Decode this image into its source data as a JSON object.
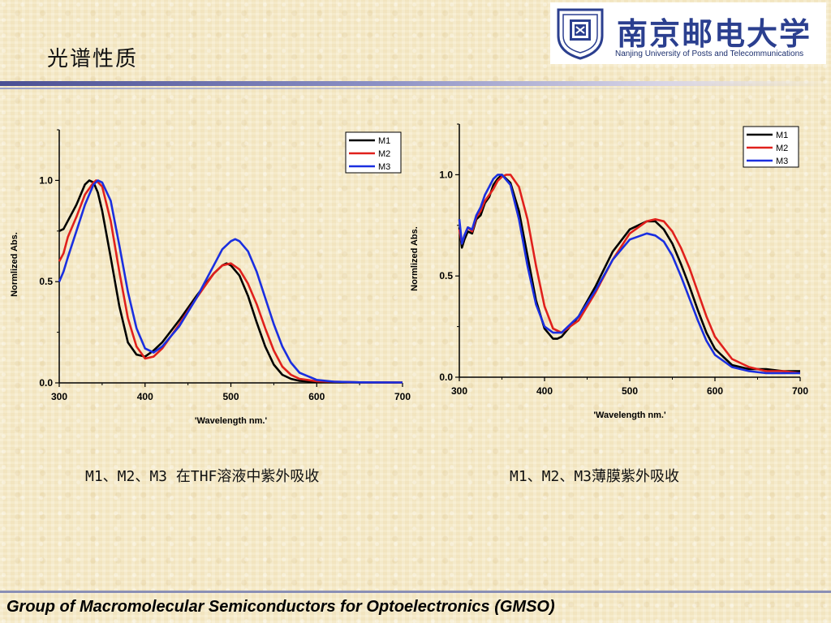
{
  "slide": {
    "title": "光谱性质",
    "footer": "Group of Macromolecular Semiconductors for Optoelectronics (GMSO)"
  },
  "logo": {
    "name_cn": "南京邮电大学",
    "name_en": "Nanjing University of Posts and Telecommunications"
  },
  "captions": {
    "left": "M1、M2、M3 在THF溶液中紫外吸收",
    "right": "M1、M2、M3薄膜紫外吸收"
  },
  "colors": {
    "M1": "#000000",
    "M2": "#e0201c",
    "M3": "#1a2fe0"
  },
  "chart_data": [
    {
      "type": "line",
      "xlabel": "'Wavelength nm.'",
      "ylabel": "Normlized Abs.",
      "xlim": [
        300,
        700
      ],
      "ylim": [
        0,
        1.25
      ],
      "xticks": [
        "300",
        "400",
        "500",
        "600",
        "700"
      ],
      "yticks": [
        {
          "v": 0,
          "label": "0.0"
        },
        {
          "v": 0.5,
          "label": "0.5"
        },
        {
          "v": 1,
          "label": "1.0"
        }
      ],
      "legend_position": "top-right",
      "series": [
        {
          "name": "M1",
          "x": [
            300,
            305,
            310,
            320,
            330,
            335,
            340,
            345,
            350,
            360,
            370,
            380,
            390,
            400,
            410,
            420,
            440,
            460,
            480,
            490,
            495,
            500,
            510,
            520,
            530,
            540,
            550,
            560,
            570,
            580,
            600,
            650,
            700
          ],
          "y": [
            0.75,
            0.76,
            0.8,
            0.88,
            0.98,
            1.0,
            0.99,
            0.94,
            0.85,
            0.62,
            0.38,
            0.2,
            0.14,
            0.13,
            0.16,
            0.2,
            0.31,
            0.43,
            0.54,
            0.58,
            0.59,
            0.58,
            0.53,
            0.43,
            0.3,
            0.18,
            0.09,
            0.04,
            0.02,
            0.01,
            0.005,
            0.003,
            0.002
          ]
        },
        {
          "name": "M2",
          "x": [
            300,
            305,
            310,
            320,
            330,
            340,
            343,
            350,
            360,
            370,
            380,
            390,
            400,
            410,
            420,
            440,
            460,
            480,
            490,
            500,
            510,
            520,
            530,
            540,
            550,
            560,
            570,
            580,
            600,
            650,
            700
          ],
          "y": [
            0.6,
            0.64,
            0.72,
            0.82,
            0.93,
            0.99,
            1.0,
            0.97,
            0.8,
            0.55,
            0.32,
            0.18,
            0.12,
            0.13,
            0.17,
            0.29,
            0.42,
            0.54,
            0.58,
            0.59,
            0.56,
            0.49,
            0.39,
            0.27,
            0.16,
            0.08,
            0.04,
            0.02,
            0.008,
            0.003,
            0.002
          ]
        },
        {
          "name": "M3",
          "x": [
            300,
            305,
            310,
            320,
            330,
            340,
            345,
            350,
            360,
            370,
            380,
            390,
            400,
            410,
            420,
            440,
            460,
            480,
            490,
            500,
            505,
            510,
            520,
            530,
            540,
            550,
            560,
            570,
            580,
            600,
            620,
            650,
            700
          ],
          "y": [
            0.5,
            0.55,
            0.62,
            0.75,
            0.88,
            0.98,
            1.0,
            0.99,
            0.9,
            0.68,
            0.45,
            0.27,
            0.17,
            0.15,
            0.18,
            0.28,
            0.42,
            0.58,
            0.66,
            0.7,
            0.71,
            0.7,
            0.65,
            0.55,
            0.42,
            0.29,
            0.18,
            0.1,
            0.05,
            0.015,
            0.006,
            0.003,
            0.002
          ]
        }
      ]
    },
    {
      "type": "line",
      "xlabel": "'Wavelength nm.'",
      "ylabel": "Normlized Abs.",
      "xlim": [
        300,
        700
      ],
      "ylim": [
        0,
        1.25
      ],
      "xticks": [
        "300",
        "400",
        "500",
        "600",
        "700"
      ],
      "yticks": [
        {
          "v": 0,
          "label": "0.0"
        },
        {
          "v": 0.5,
          "label": "0.5"
        },
        {
          "v": 1,
          "label": "1.0"
        }
      ],
      "legend_position": "top-right",
      "series": [
        {
          "name": "M1",
          "x": [
            300,
            303,
            306,
            310,
            315,
            320,
            325,
            330,
            335,
            340,
            345,
            350,
            360,
            370,
            380,
            390,
            400,
            410,
            415,
            420,
            440,
            460,
            480,
            500,
            520,
            530,
            540,
            550,
            560,
            570,
            580,
            590,
            600,
            620,
            640,
            660,
            680,
            700
          ],
          "y": [
            0.74,
            0.64,
            0.68,
            0.72,
            0.71,
            0.78,
            0.8,
            0.86,
            0.89,
            0.95,
            0.98,
            1.0,
            0.96,
            0.82,
            0.6,
            0.38,
            0.24,
            0.19,
            0.19,
            0.2,
            0.3,
            0.45,
            0.62,
            0.73,
            0.77,
            0.77,
            0.73,
            0.66,
            0.56,
            0.45,
            0.33,
            0.22,
            0.14,
            0.06,
            0.04,
            0.04,
            0.03,
            0.03
          ]
        },
        {
          "name": "M2",
          "x": [
            300,
            303,
            306,
            310,
            315,
            320,
            325,
            330,
            335,
            340,
            345,
            350,
            355,
            360,
            370,
            380,
            390,
            400,
            410,
            420,
            440,
            460,
            480,
            500,
            520,
            530,
            540,
            550,
            560,
            570,
            580,
            590,
            600,
            620,
            640,
            660,
            680,
            700
          ],
          "y": [
            0.73,
            0.66,
            0.7,
            0.74,
            0.72,
            0.79,
            0.82,
            0.87,
            0.9,
            0.93,
            0.97,
            0.99,
            1.0,
            1.0,
            0.94,
            0.78,
            0.55,
            0.35,
            0.24,
            0.22,
            0.28,
            0.42,
            0.58,
            0.71,
            0.77,
            0.78,
            0.77,
            0.72,
            0.64,
            0.54,
            0.42,
            0.3,
            0.2,
            0.09,
            0.05,
            0.03,
            0.03,
            0.02
          ]
        },
        {
          "name": "M3",
          "x": [
            300,
            303,
            306,
            310,
            315,
            320,
            325,
            330,
            335,
            340,
            345,
            350,
            360,
            370,
            380,
            390,
            400,
            410,
            420,
            440,
            460,
            480,
            500,
            520,
            530,
            540,
            550,
            560,
            570,
            580,
            590,
            600,
            620,
            640,
            660,
            680,
            700
          ],
          "y": [
            0.78,
            0.66,
            0.7,
            0.74,
            0.73,
            0.8,
            0.84,
            0.9,
            0.94,
            0.98,
            1.0,
            1.0,
            0.95,
            0.78,
            0.55,
            0.36,
            0.25,
            0.22,
            0.22,
            0.3,
            0.43,
            0.58,
            0.68,
            0.71,
            0.7,
            0.67,
            0.6,
            0.5,
            0.39,
            0.28,
            0.18,
            0.11,
            0.05,
            0.03,
            0.02,
            0.02,
            0.02
          ]
        }
      ]
    }
  ]
}
